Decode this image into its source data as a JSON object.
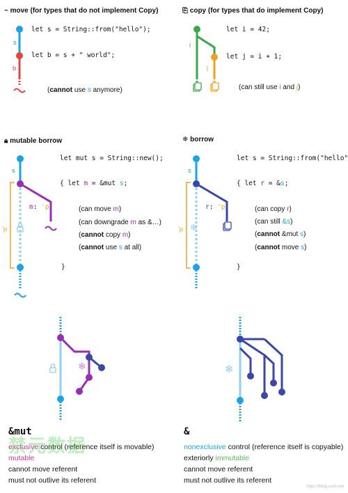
{
  "move_panel": {
    "title_icon": "~",
    "title": "move (for types that do not implement Copy)",
    "var_s": "s",
    "var_b": "b",
    "code1": "let s = String::from(\"hello\");",
    "code2": "let b = s + \" world\";",
    "note_cannot": "cannot",
    "note_mid": " use ",
    "note_var": "s",
    "note_end": " anymore)"
  },
  "copy_panel": {
    "title": "copy (for types that do implement Copy)",
    "var_i": "i",
    "var_j": "j",
    "code1": "let i = 42;",
    "code2": "let j = i + 1;",
    "note": "(can still use ",
    "note_i": "i",
    "note_and": " and ",
    "note_j": "j",
    "note_end": ")"
  },
  "mut_panel": {
    "title": "mutable borrow",
    "var_s": "s",
    "lifetime": "'p",
    "code1": "let mut s = String::new();",
    "code2_open": "{ let ",
    "code2_m": "m",
    "code2_rest": " = &mut ",
    "code2_s": "s",
    "code2_end": ";",
    "m_label": "m",
    "m_colon": ": ",
    "m_life": "'p",
    "note1_a": "(can move ",
    "note1_v": "m",
    "note1_e": ")",
    "note2_a": "(can downgrade ",
    "note2_v": "m",
    "note2_e": " as &…)",
    "note3_b": "cannot",
    "note3_a": " copy ",
    "note3_v": "m",
    "note3_e": ")",
    "note4_b": "cannot",
    "note4_a": " use ",
    "note4_v": "s",
    "note4_e": " at all)",
    "close": "}"
  },
  "borrow_panel": {
    "title": "borrow",
    "var_s": "s",
    "lifetime": "'p",
    "code1": "let s = String::from(\"hello\");",
    "code2_open": "{ let ",
    "code2_r": "r",
    "code2_rest": " = &",
    "code2_s": "s",
    "code2_end": ";",
    "r_label": "r",
    "r_colon": ": ",
    "r_life": "'p",
    "note1_a": "(can copy ",
    "note1_v": "r",
    "note1_e": ")",
    "note2_a": "(can still ",
    "note2_v": "&s",
    "note2_e": ")",
    "note3_b": "cannot",
    "note3_a": " &mut ",
    "note3_v": "s",
    "note3_e": ")",
    "note4_b": "cannot",
    "note4_a": " move ",
    "note4_v": "s",
    "note4_e": ")",
    "close": "}"
  },
  "summary_mut": {
    "heading": "&mut",
    "line1_a": "exclusive",
    "line1_b": " control (reference itself is movable)",
    "line2": "mutable",
    "line3": "cannot move referent",
    "line4": "must not outlive its referent"
  },
  "summary_ref": {
    "heading": "&",
    "line1_a": "nonexclusive",
    "line1_b": " control (reference itself is copyable)",
    "line2_a": "exteriorly ",
    "line2_b": "immutable",
    "line3": "cannot move referent",
    "line4": "must not outlive its referent"
  },
  "watermark": "禁元数据",
  "footer": "https://blog.csdn.net",
  "colors": {
    "cyan": "#1aa3e6",
    "red": "#e0463c",
    "green": "#3aa84a",
    "orange": "#f0a020",
    "purple": "#9b2db5",
    "navy": "#3a47a8"
  },
  "icons": [
    "tilde-icon",
    "copy-icon",
    "lock-icon",
    "snowflake-icon"
  ]
}
